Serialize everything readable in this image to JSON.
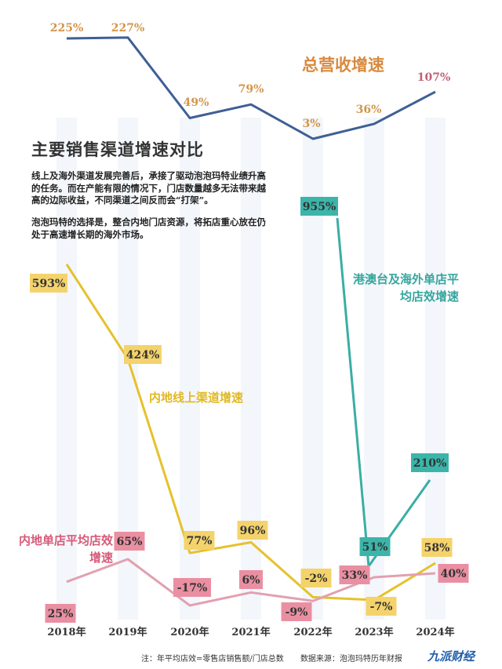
{
  "title": "主要销售渠道增速对比",
  "paragraphs": [
    "线上及海外渠道发展完善后，承接了驱动泡泡玛特业绩升高的任务。而在产能有限的情况下，门店数量越多无法带来越高的边际收益，不同渠道之间反而会“打架”。",
    "泡泡玛特的选择是，整合内地门店资源，将拓店重心放在仍处于高速增长期的海外市场。"
  ],
  "footer": {
    "note": "注：年平均店效=零售店销售额/门店总数",
    "source": "数据来源：泡泡玛特历年财报",
    "logo": "九派财经"
  },
  "chart_data": {
    "type": "line",
    "categories": [
      "2018年",
      "2019年",
      "2020年",
      "2021年",
      "2022年",
      "2023年",
      "2024年"
    ],
    "series": [
      {
        "name": "总营收增速",
        "color": "#3f5f95",
        "label_color": "#d4954a",
        "values": [
          225,
          227,
          49,
          79,
          3,
          36,
          107
        ],
        "labels": [
          "225%",
          "227%",
          "49%",
          "79%",
          "3%",
          "36%",
          "107%"
        ]
      },
      {
        "name": "内地线上渠道增速",
        "color": "#e6c12c",
        "label_color": "#f4d36c",
        "values": [
          593,
          424,
          77,
          96,
          -2,
          -7,
          58
        ],
        "labels": [
          "593%",
          "424%",
          "77%",
          "96%",
          "-2%",
          "-7%",
          "58%"
        ]
      },
      {
        "name": "港澳台及海外单店平均店效增速",
        "color": "#3aaea4",
        "label_color": "#3bb5aa",
        "values": [
          null,
          null,
          null,
          null,
          955,
          51,
          210
        ],
        "labels": [
          "",
          "",
          "",
          "",
          "955%",
          "51%",
          "210%"
        ]
      },
      {
        "name": "内地单店平均店效增速",
        "color": "#e2a0b0",
        "label_color": "#ea8fa2",
        "values": [
          25,
          65,
          -17,
          6,
          -9,
          33,
          40
        ],
        "labels": [
          "25%",
          "65%",
          "-17%",
          "6%",
          "-9%",
          "33%",
          "40%"
        ]
      }
    ],
    "series_label_colors": [
      "#d98a3e",
      "#e0b824",
      "#36a69e",
      "#d75a78"
    ],
    "ylabel": "",
    "xlabel": "",
    "grid": false,
    "background_columns": true
  }
}
